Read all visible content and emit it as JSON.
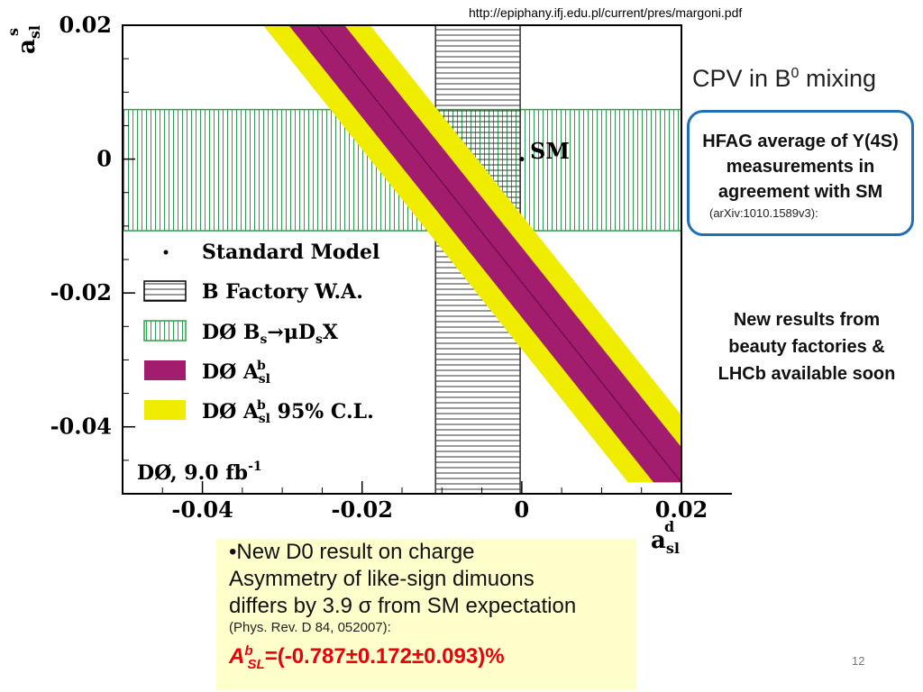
{
  "slide": {
    "url": "http://epiphany.ifj.edu.pl/current/pres/margoni.pdf",
    "title_main": "CPV in B",
    "title_sup": "0",
    "title_tail": " mixing",
    "hfag_text": "HFAG average of Y(4S) measurements in agreement with SM",
    "hfag_ref": "(arXiv:1010.1589v3):",
    "new_results": "New results from beauty factories & LHCb available soon",
    "note_line1": "•New D0 result on charge",
    "note_line2": "Asymmetry of like-sign dimuons",
    "note_line3": "differs by 3.9 σ from SM expectation",
    "note_ref": "(Phys. Rev. D 84, 052007):",
    "formula_A": "A",
    "formula_sup": "b",
    "formula_sub": "SL",
    "formula_value": "=(-0.787±0.172±0.093)%",
    "page_number": "12"
  },
  "chart_data": {
    "type": "scatter",
    "xlabel_main": "a",
    "xlabel_sub": "sl",
    "xlabel_sup": "d",
    "ylabel_main": "a",
    "ylabel_sub": "sl",
    "ylabel_sup": "s",
    "xlim": [
      -0.05,
      0.02
    ],
    "ylim": [
      -0.05,
      0.02
    ],
    "x_ticks": [
      "-0.04",
      "-0.02",
      "0",
      "0.02"
    ],
    "x_tick_values": [
      -0.04,
      -0.02,
      0,
      0.02
    ],
    "y_ticks": [
      "0.02",
      "0",
      "-0.02",
      "-0.04"
    ],
    "y_tick_values": [
      0.02,
      0,
      -0.02,
      -0.04
    ],
    "sm_point": {
      "x": 0.0,
      "y": 0.0,
      "label": "SM"
    },
    "b_factory_band": {
      "x_min": -0.0108,
      "x_max": -0.0002
    },
    "bs_band": {
      "y_min": -0.0107,
      "y_max": 0.0074
    },
    "asl_band": {
      "center_line": [
        {
          "x": -0.0257,
          "y": 0.02
        },
        {
          "x": 0.02,
          "y": -0.0483
        }
      ],
      "inner_half_width_x": 0.0035,
      "outer_half_width_x": 0.0067
    },
    "legend": [
      {
        "label_html": "Standard Model",
        "kind": "dot"
      },
      {
        "label_html": "B Factory W.A.",
        "kind": "hbox"
      },
      {
        "label_main": "DØ B",
        "label_sub": "s",
        "label_mid": "→μD",
        "label_sub2": "s",
        "label_tail": "X",
        "kind": "vbox"
      },
      {
        "label_main": "DØ A",
        "label_sup": "b",
        "label_sub": "sl",
        "label_tail": "",
        "kind": "purple"
      },
      {
        "label_main": "DØ A",
        "label_sup": "b",
        "label_sub": "sl",
        "label_tail": " 95% C.L.",
        "kind": "yellow"
      }
    ],
    "legend_placement": "lower-left",
    "dataset_label": "DØ, 9.0 fb",
    "dataset_label_sup": "-1",
    "colors": {
      "purple": "#a21d6e",
      "yellow": "#f0ec00",
      "green": "#2e9e4a",
      "hatch_black": "#333333"
    }
  }
}
